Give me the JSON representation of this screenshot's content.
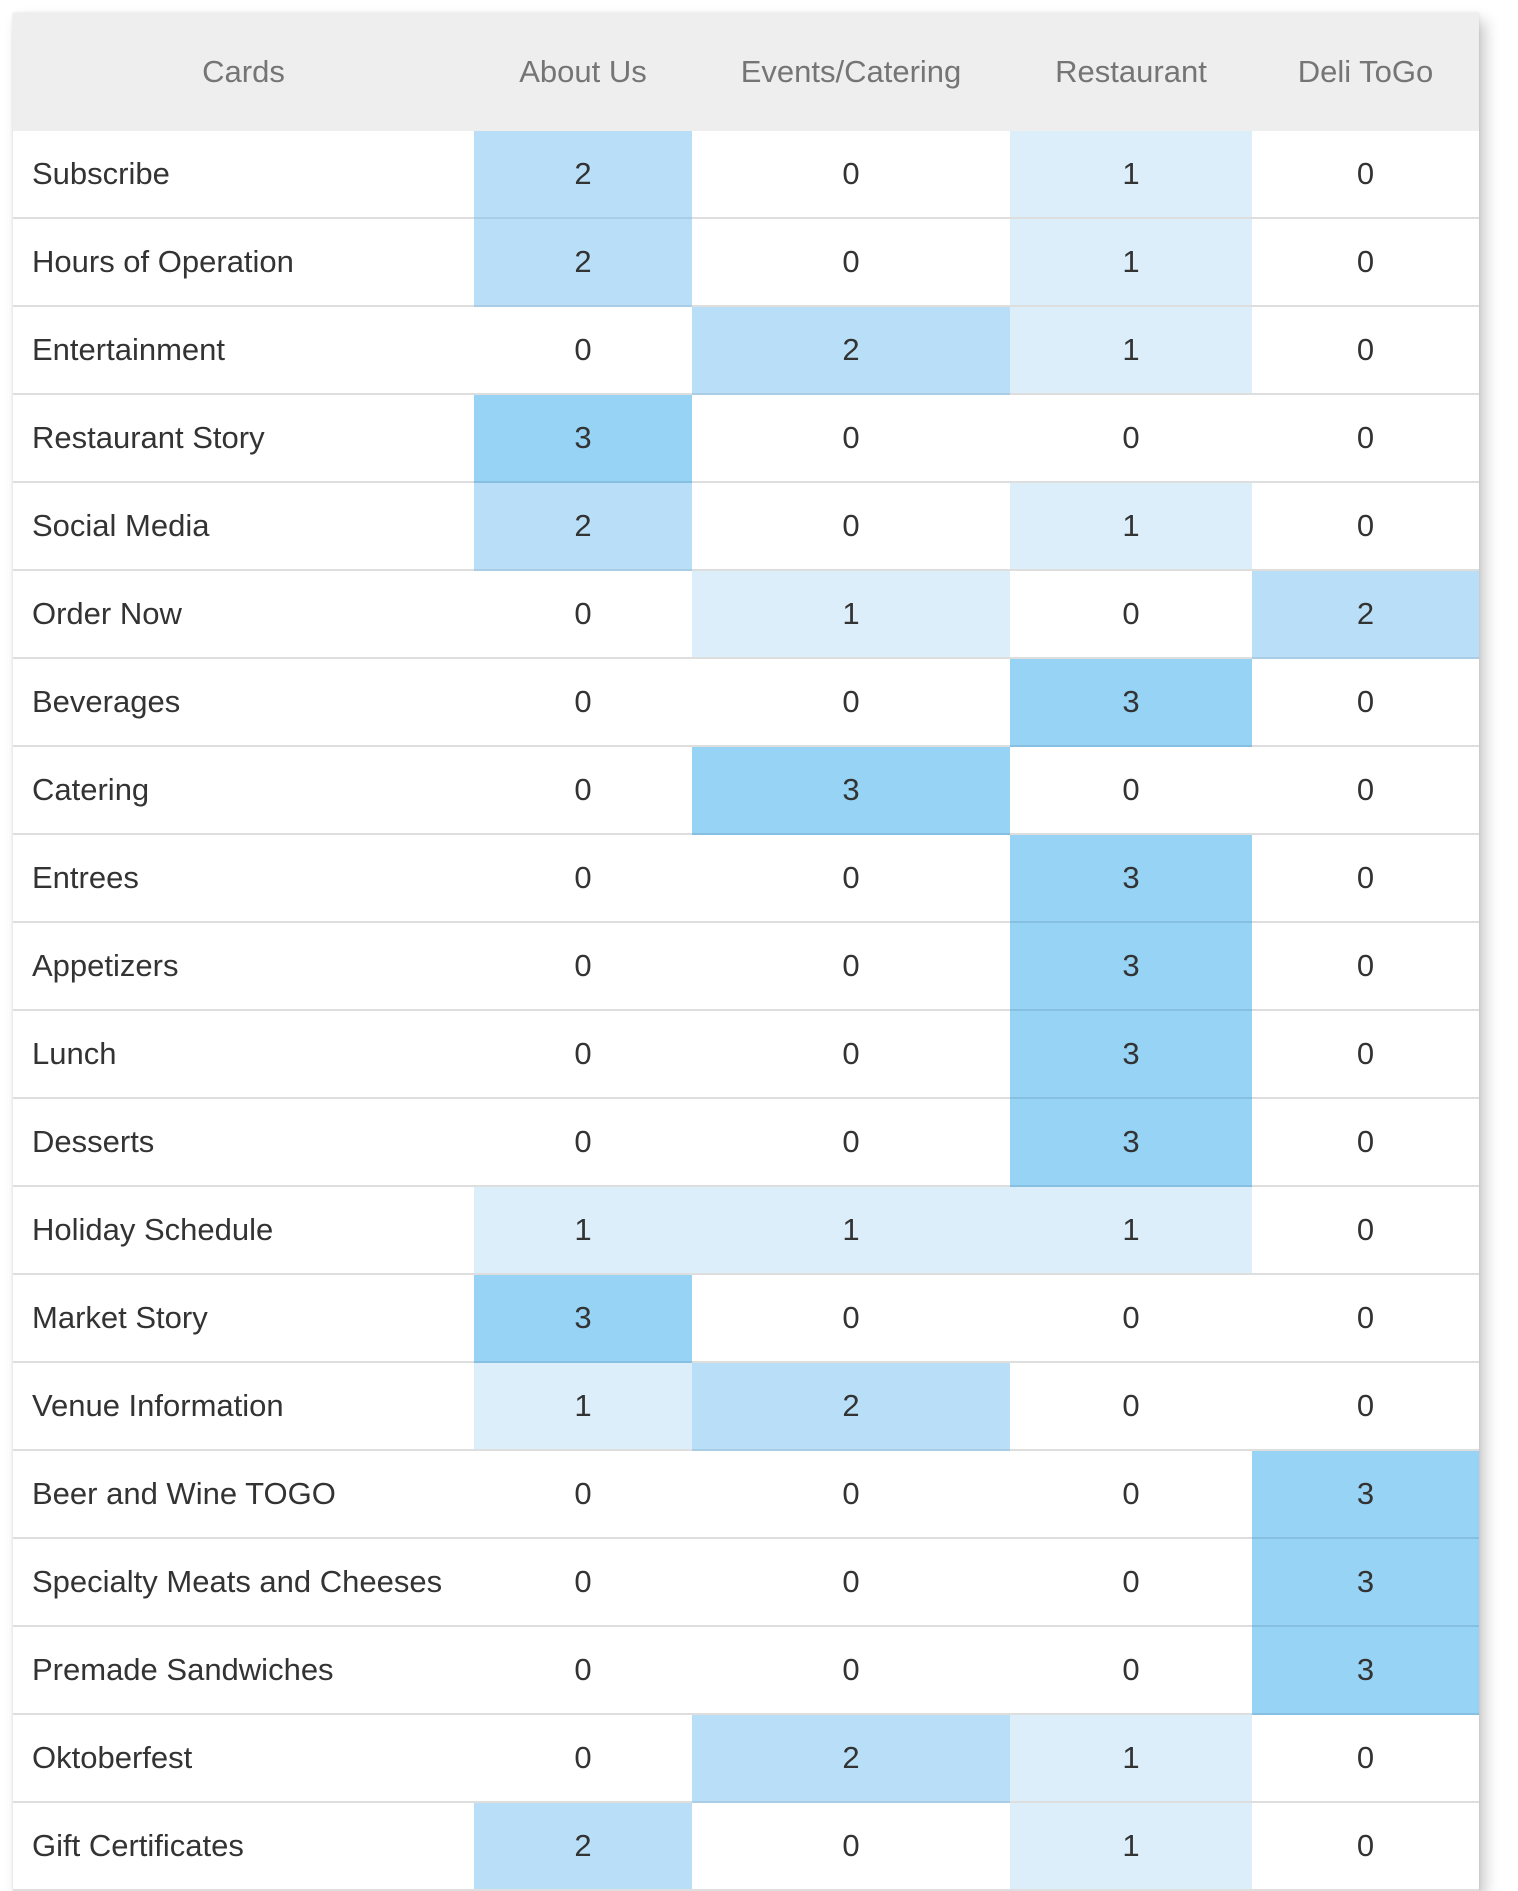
{
  "table": {
    "headers": [
      "Cards",
      "About Us",
      "Events/Catering",
      "Restaurant",
      "Deli ToGo"
    ],
    "rows": [
      {
        "label": "Subscribe",
        "values": [
          "2",
          "0",
          "1",
          "0"
        ]
      },
      {
        "label": "Hours of Operation",
        "values": [
          "2",
          "0",
          "1",
          "0"
        ]
      },
      {
        "label": "Entertainment",
        "values": [
          "0",
          "2",
          "1",
          "0"
        ]
      },
      {
        "label": "Restaurant Story",
        "values": [
          "3",
          "0",
          "0",
          "0"
        ]
      },
      {
        "label": "Social Media",
        "values": [
          "2",
          "0",
          "1",
          "0"
        ]
      },
      {
        "label": "Order Now",
        "values": [
          "0",
          "1",
          "0",
          "2"
        ]
      },
      {
        "label": "Beverages",
        "values": [
          "0",
          "0",
          "3",
          "0"
        ]
      },
      {
        "label": "Catering",
        "values": [
          "0",
          "3",
          "0",
          "0"
        ]
      },
      {
        "label": "Entrees",
        "values": [
          "0",
          "0",
          "3",
          "0"
        ]
      },
      {
        "label": "Appetizers",
        "values": [
          "0",
          "0",
          "3",
          "0"
        ]
      },
      {
        "label": "Lunch",
        "values": [
          "0",
          "0",
          "3",
          "0"
        ]
      },
      {
        "label": "Desserts",
        "values": [
          "0",
          "0",
          "3",
          "0"
        ]
      },
      {
        "label": "Holiday Schedule",
        "values": [
          "1",
          "1",
          "1",
          "0"
        ]
      },
      {
        "label": "Market Story",
        "values": [
          "3",
          "0",
          "0",
          "0"
        ]
      },
      {
        "label": "Venue Information",
        "values": [
          "1",
          "2",
          "0",
          "0"
        ]
      },
      {
        "label": "Beer and Wine TOGO",
        "values": [
          "0",
          "0",
          "0",
          "3"
        ]
      },
      {
        "label": "Specialty Meats and Cheeses",
        "values": [
          "0",
          "0",
          "0",
          "3"
        ]
      },
      {
        "label": "Premade Sandwiches",
        "values": [
          "0",
          "0",
          "0",
          "3"
        ]
      },
      {
        "label": "Oktoberfest",
        "values": [
          "0",
          "2",
          "1",
          "0"
        ]
      },
      {
        "label": "Gift Certificates",
        "values": [
          "2",
          "0",
          "1",
          "0"
        ]
      }
    ]
  },
  "colors": {
    "header_bg": "#eeeeee",
    "level_0": "#ffffff",
    "level_1": "#dbeefa",
    "level_2": "#b8dff7",
    "level_3": "#97d3f5"
  }
}
